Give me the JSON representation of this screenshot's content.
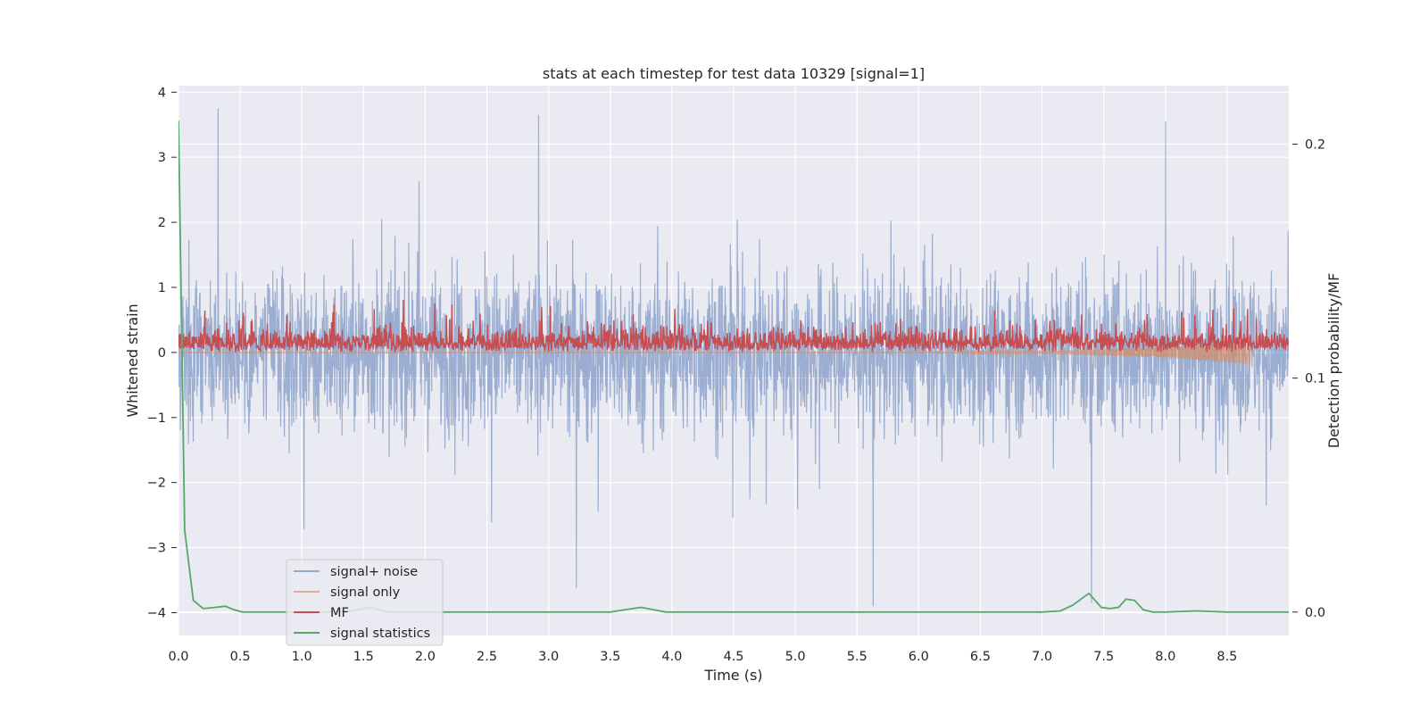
{
  "chart_data": {
    "type": "line",
    "title": "stats at each timestep for test data 10329 [signal=1]",
    "xlabel": "Time (s)",
    "ylabel": "Whitened strain",
    "y2label": "Detection probability/MF",
    "xlim": [
      0.0,
      9.0
    ],
    "ylim": [
      -4.35,
      4.1
    ],
    "y2lim": [
      -0.01,
      0.225
    ],
    "xticks": [
      "0.0",
      "0.5",
      "1.0",
      "1.5",
      "2.0",
      "2.5",
      "3.0",
      "3.5",
      "4.0",
      "4.5",
      "5.0",
      "5.5",
      "6.0",
      "6.5",
      "7.0",
      "7.5",
      "8.0",
      "8.5"
    ],
    "yticks": [
      "4",
      "3",
      "2",
      "1",
      "0",
      "−1",
      "−2",
      "−3",
      "−4"
    ],
    "y2ticks": [
      "0.2",
      "0.1",
      "0.0"
    ],
    "grid": true,
    "legend_position": "lower-left",
    "colors": {
      "signal_noise": "#4c72b0",
      "signal_only": "#dd8452",
      "mf": "#c44e52",
      "stats": "#55a868",
      "axes_bg": "#eaeaf2",
      "grid": "#ffffff"
    },
    "series": [
      {
        "name": "signal+ noise",
        "axis": "left",
        "description": "dense whitened strain trace, roughly gaussian between -2 and 2 with spikes to about 3.7 / -3.9",
        "x_range": [
          0.0,
          9.0
        ],
        "envelope": [
          -2.0,
          2.0
        ],
        "peaks": [
          3.75,
          3.65,
          3.55,
          -3.9,
          -3.85
        ]
      },
      {
        "name": "signal only",
        "axis": "left",
        "description": "small chirp signal close to zero that grows and ends near 8.7 s",
        "x": [
          0.0,
          4.0,
          6.0,
          7.0,
          7.5,
          8.0,
          8.3,
          8.5,
          8.7
        ],
        "y": [
          0.0,
          0.0,
          0.0,
          0.02,
          0.05,
          0.08,
          0.12,
          0.16,
          0.2
        ],
        "end": 8.7
      },
      {
        "name": "MF",
        "axis": "left",
        "description": "matched filter output fluctuating between 0 and about 1.0",
        "x_range": [
          0.0,
          9.0
        ],
        "range": [
          0.0,
          1.0
        ]
      },
      {
        "name": "signal statistics",
        "axis": "right",
        "x": [
          0.0,
          0.05,
          0.12,
          0.2,
          0.3,
          0.38,
          0.45,
          0.52,
          0.8,
          1.0,
          1.2,
          1.4,
          1.55,
          1.7,
          2.0,
          2.5,
          3.0,
          3.5,
          3.62,
          3.75,
          3.85,
          3.95,
          4.5,
          5.0,
          5.5,
          6.0,
          6.5,
          7.0,
          7.15,
          7.25,
          7.38,
          7.48,
          7.55,
          7.62,
          7.68,
          7.75,
          7.82,
          7.9,
          8.0,
          8.25,
          8.5,
          8.75,
          9.0
        ],
        "y": [
          0.21,
          0.035,
          0.005,
          0.0015,
          0.002,
          0.0025,
          0.001,
          0.0,
          0.0,
          0.0,
          0.0,
          0.0005,
          0.002,
          0.0,
          0.0,
          0.0,
          0.0,
          0.0,
          0.001,
          0.002,
          0.001,
          0.0,
          0.0,
          0.0,
          0.0,
          0.0,
          0.0,
          0.0,
          0.0005,
          0.003,
          0.008,
          0.002,
          0.0015,
          0.002,
          0.0055,
          0.005,
          0.001,
          0.0,
          0.0,
          0.0005,
          0.0,
          0.0,
          0.0
        ]
      }
    ]
  }
}
